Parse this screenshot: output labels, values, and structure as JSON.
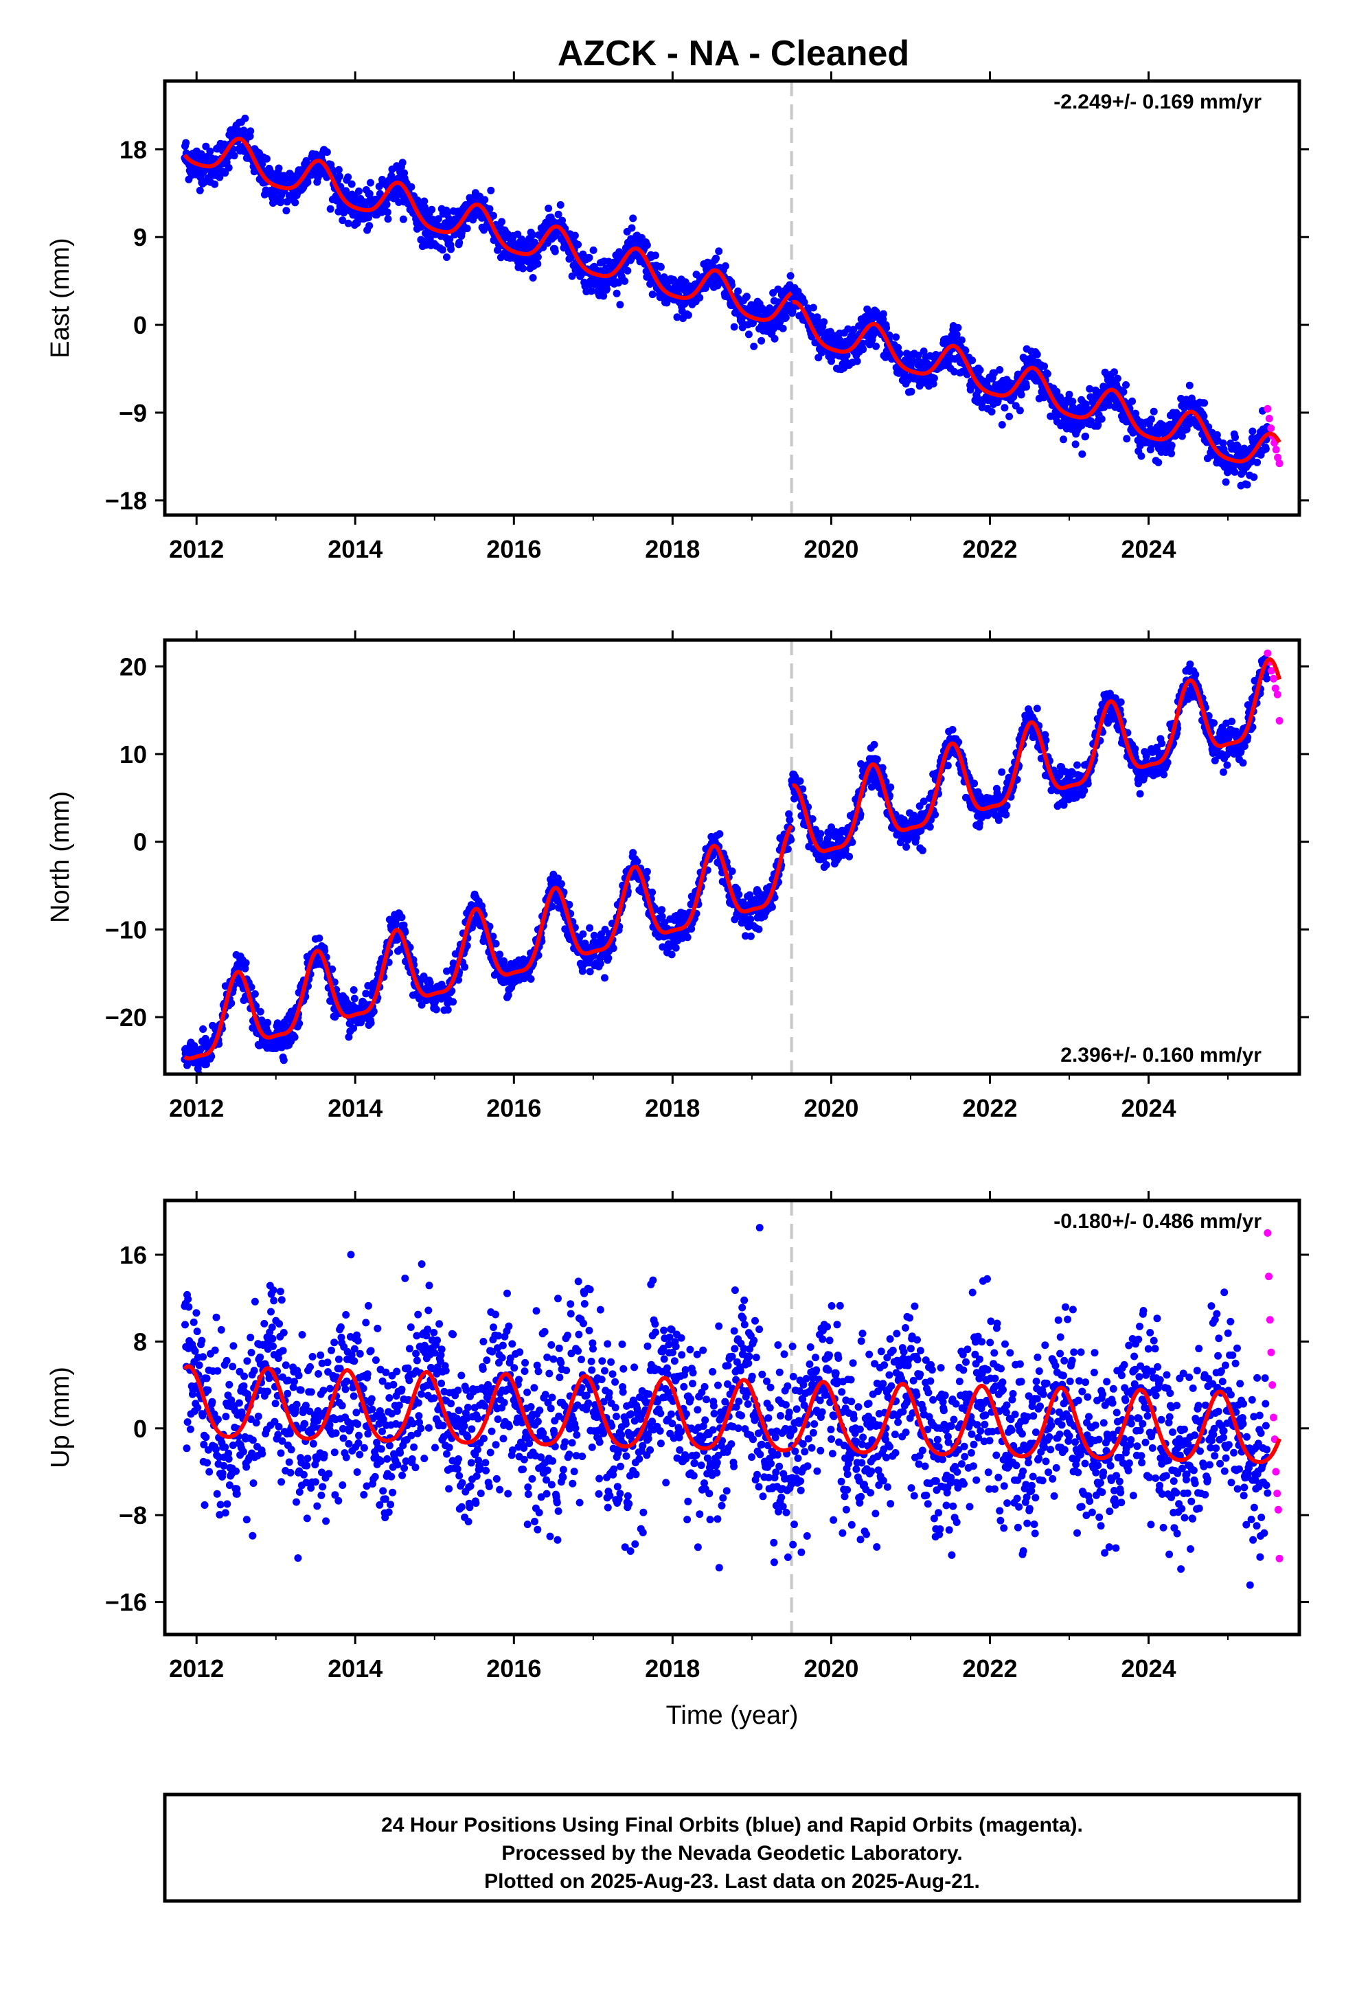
{
  "title": "AZCK  - NA - Cleaned",
  "footer": {
    "line1": "24 Hour Positions Using Final Orbits (blue) and Rapid Orbits (magenta).",
    "line2": "Processed by the Nevada Geodetic Laboratory.",
    "line3": "Plotted on 2025-Aug-23. Last data on 2025-Aug-21."
  },
  "colors": {
    "final": "#0000ff",
    "rapid": "#ff00ff",
    "model": "#ff0000",
    "event": "#c8c8c8"
  },
  "chart_data": [
    {
      "type": "scatter",
      "component": "east",
      "ylabel": "East (mm)",
      "xlabel": "",
      "rate": "-2.249+/- 0.169 mm/yr",
      "rate_position": "top-right",
      "xlim": [
        2011.6,
        2025.9
      ],
      "ylim": [
        -19.5,
        25
      ],
      "xticks": [
        2012,
        2014,
        2016,
        2018,
        2020,
        2022,
        2024
      ],
      "yticks": [
        -18,
        -9,
        0,
        9,
        18
      ],
      "event_line_x": 2019.5,
      "final_range": [
        2011.85,
        2025.5
      ],
      "rapid_range": [
        2025.5,
        2025.65
      ],
      "trend": {
        "intercept_at_2012": 18.0,
        "slope_mm_per_yr": -2.249,
        "offset_at_event": -1.0
      },
      "seasonal": {
        "annual_amp": 1.9,
        "annual_phase_yr": 0.55,
        "semiannual_amp": 0.4
      },
      "scatter_sd": 1.0,
      "sample_count": 2600,
      "rapid_values": [
        -8.6,
        -9.6,
        -10.6,
        -11.4,
        -12.1,
        -12.8,
        -13.6,
        -14.2
      ]
    },
    {
      "type": "scatter",
      "component": "north",
      "ylabel": "North (mm)",
      "xlabel": "",
      "rate": "2.396+/- 0.160 mm/yr",
      "rate_position": "bottom-right",
      "xlim": [
        2011.6,
        2025.9
      ],
      "ylim": [
        -26.5,
        23
      ],
      "xticks": [
        2012,
        2014,
        2016,
        2018,
        2020,
        2022,
        2024
      ],
      "yticks": [
        -20,
        -10,
        0,
        10,
        20
      ],
      "event_line_x": 2019.5,
      "final_range": [
        2011.85,
        2025.5
      ],
      "rapid_range": [
        2025.5,
        2025.65
      ],
      "trend": {
        "intercept_at_2012": -21.5,
        "slope_mm_per_yr": 2.396,
        "offset_at_event": 4.5
      },
      "seasonal": {
        "annual_amp": 4.2,
        "annual_phase_yr": 0.52,
        "semiannual_amp": 1.2
      },
      "scatter_sd": 1.0,
      "sample_count": 2600,
      "rapid_values": [
        21.5,
        20.5,
        19.5,
        18.6,
        17.5,
        16.8,
        13.8
      ]
    },
    {
      "type": "scatter",
      "component": "up",
      "ylabel": "Up (mm)",
      "xlabel": "Time (year)",
      "rate": "-0.180+/- 0.486 mm/yr",
      "rate_position": "top-right",
      "xlim": [
        2011.6,
        2025.9
      ],
      "ylim": [
        -19,
        21
      ],
      "xticks": [
        2012,
        2014,
        2016,
        2018,
        2020,
        2022,
        2024
      ],
      "yticks": [
        -16,
        -8,
        0,
        8,
        16
      ],
      "event_line_x": 2019.5,
      "final_range": [
        2011.85,
        2025.5
      ],
      "rapid_range": [
        2025.5,
        2025.65
      ],
      "trend": {
        "intercept_at_2012": 2.0,
        "slope_mm_per_yr": -0.18,
        "offset_at_event": 0.0
      },
      "seasonal": {
        "annual_amp": 3.2,
        "annual_phase_yr": 0.9,
        "semiannual_amp": 0.5
      },
      "scatter_sd": 4.0,
      "sample_count": 2600,
      "rapid_values": [
        18,
        14,
        10,
        7,
        4,
        1,
        -1,
        -4,
        -6,
        -7.5,
        -12
      ]
    }
  ]
}
